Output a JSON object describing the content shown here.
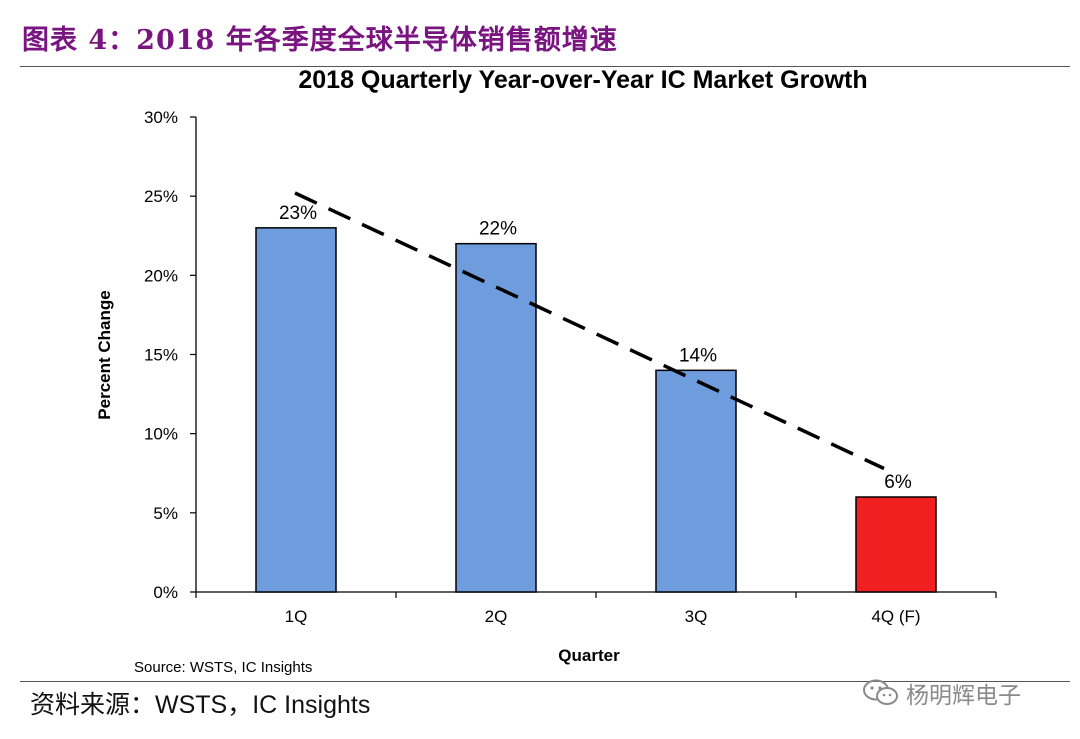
{
  "figure_heading": "图表 4：2018 年各季度全球半导体销售额增速",
  "source_note": "资料来源：WSTS，IC Insights",
  "watermark": "杨明辉电子",
  "colors": {
    "heading": "#7a1480",
    "bar_actual": "#6f9cdc",
    "bar_forecast": "#f02020",
    "trend": "#000000"
  },
  "chart_data": {
    "type": "bar",
    "title": "2018 Quarterly Year-over-Year IC Market Growth",
    "xlabel": "Quarter",
    "ylabel": "Percent Change",
    "categories": [
      "1Q",
      "2Q",
      "3Q",
      "4Q (F)"
    ],
    "values": [
      23,
      22,
      14,
      6
    ],
    "value_labels": [
      "23%",
      "22%",
      "14%",
      "6%"
    ],
    "bar_colors": [
      "#6f9cdc",
      "#6f9cdc",
      "#6f9cdc",
      "#f02020"
    ],
    "ylim": [
      0,
      30
    ],
    "yticks": [
      0,
      5,
      10,
      15,
      20,
      25,
      30
    ],
    "ytick_labels": [
      "0%",
      "5%",
      "10%",
      "15%",
      "20%",
      "25%",
      "30%"
    ],
    "trendline": {
      "style": "dashed",
      "from": {
        "category": "1Q",
        "y": 25.2
      },
      "to": {
        "category": "4Q (F)",
        "y": 7.8
      }
    },
    "source": "Source: WSTS, IC Insights",
    "grid": false
  }
}
